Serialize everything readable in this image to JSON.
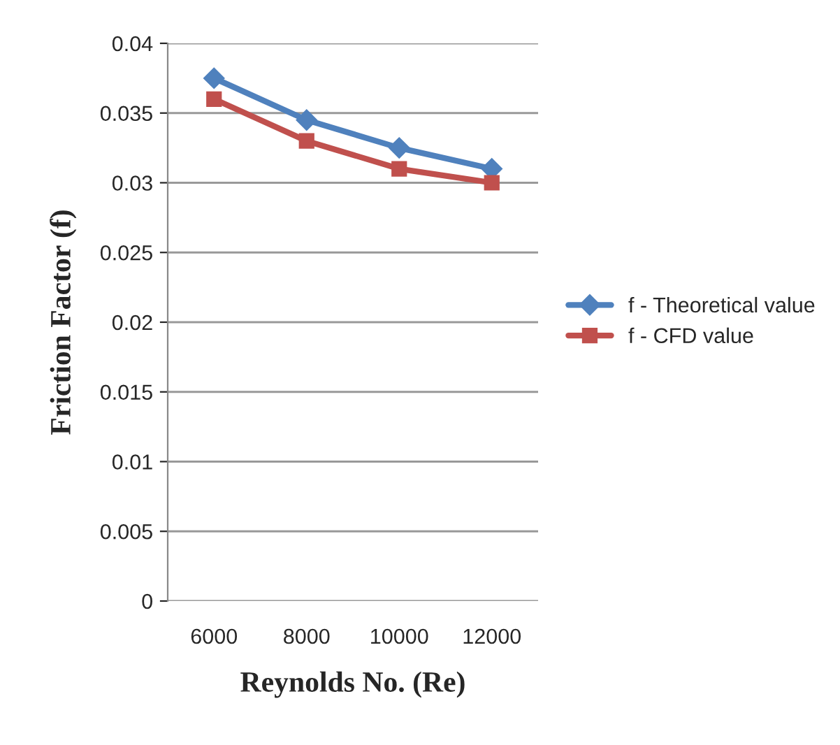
{
  "chart_data": {
    "type": "line",
    "xlabel": "Reynolds No. (Re)",
    "ylabel": "Friction Factor (f)",
    "categories": [
      "6000",
      "8000",
      "10000",
      "12000"
    ],
    "series": [
      {
        "name": "f - Theoretical value",
        "color": "#4f81bd",
        "values": [
          0.0375,
          0.0345,
          0.0325,
          0.031
        ],
        "marker": "diamond"
      },
      {
        "name": "f - CFD value",
        "color": "#c0504d",
        "values": [
          0.036,
          0.033,
          0.031,
          0.03
        ],
        "marker": "square"
      }
    ],
    "ylim": [
      0,
      0.04
    ],
    "yticks": [
      0,
      0.005,
      0.01,
      0.015,
      0.02,
      0.025,
      0.03,
      0.035,
      0.04
    ],
    "grid": "y",
    "legend": "right",
    "line_style": "solid"
  }
}
